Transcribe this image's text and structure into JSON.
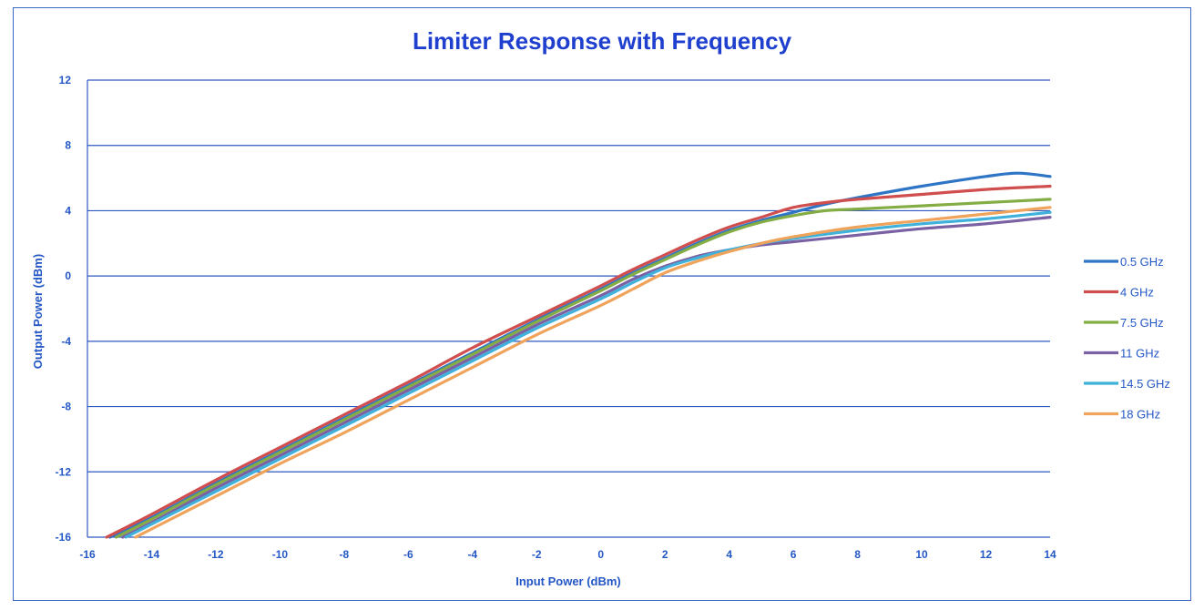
{
  "chart_data": {
    "type": "line",
    "title": "Limiter Response with Frequency",
    "xlabel": "Input Power (dBm)",
    "ylabel": "Output Power (dBm)",
    "xlim": [
      -16,
      14
    ],
    "ylim": [
      -16,
      12
    ],
    "xticks": [
      "-16",
      "-14",
      "-12",
      "-10",
      "-8",
      "-6",
      "-4",
      "-2",
      "0",
      "2",
      "4",
      "6",
      "8",
      "10",
      "12",
      "14"
    ],
    "yticks": [
      "-16",
      "-12",
      "-8",
      "-4",
      "0",
      "4",
      "8",
      "12"
    ],
    "grid": "horizontal",
    "legend_position": "right",
    "series": [
      {
        "name": "0.5 GHz",
        "color": "#2e75c6",
        "x": [
          -15.3,
          -14,
          -12,
          -10,
          -8,
          -6,
          -4,
          -2,
          0,
          1,
          2,
          3,
          4,
          5,
          6,
          7,
          8,
          10,
          12,
          13,
          14
        ],
        "y": [
          -16,
          -14.8,
          -12.7,
          -10.7,
          -8.7,
          -6.7,
          -4.7,
          -2.7,
          -0.8,
          0.2,
          1.1,
          2.0,
          2.8,
          3.4,
          3.9,
          4.4,
          4.8,
          5.5,
          6.1,
          6.3,
          6.1
        ]
      },
      {
        "name": "4 GHz",
        "color": "#d04e4e",
        "x": [
          -15.4,
          -14,
          -12,
          -10,
          -8,
          -6,
          -4,
          -2,
          0,
          1,
          2,
          3,
          4,
          5,
          6,
          7,
          8,
          10,
          12,
          14
        ],
        "y": [
          -16,
          -14.6,
          -12.5,
          -10.5,
          -8.5,
          -6.5,
          -4.4,
          -2.5,
          -0.6,
          0.4,
          1.3,
          2.2,
          3.0,
          3.6,
          4.2,
          4.5,
          4.7,
          5.0,
          5.3,
          5.5
        ]
      },
      {
        "name": "7.5 GHz",
        "color": "#85ad45",
        "x": [
          -15.1,
          -14,
          -12,
          -10,
          -8,
          -6,
          -4,
          -2,
          0,
          1,
          2,
          3,
          4,
          5,
          6,
          7,
          8,
          10,
          12,
          14
        ],
        "y": [
          -16,
          -14.9,
          -12.8,
          -10.8,
          -8.8,
          -6.8,
          -4.8,
          -2.8,
          -0.9,
          0.1,
          1.0,
          1.9,
          2.7,
          3.3,
          3.7,
          4.0,
          4.1,
          4.3,
          4.5,
          4.7
        ]
      },
      {
        "name": "11 GHz",
        "color": "#7a61a3",
        "x": [
          -14.9,
          -14,
          -12,
          -10,
          -8,
          -6,
          -4,
          -2,
          0,
          1,
          2,
          3,
          4,
          5,
          6,
          8,
          10,
          12,
          14
        ],
        "y": [
          -16,
          -15.1,
          -13.0,
          -11.0,
          -9.0,
          -7.0,
          -5.0,
          -3.0,
          -1.2,
          -0.2,
          0.6,
          1.2,
          1.6,
          1.9,
          2.1,
          2.5,
          2.9,
          3.2,
          3.6
        ]
      },
      {
        "name": "14.5 GHz",
        "color": "#3fb1da",
        "x": [
          -14.8,
          -14,
          -12,
          -10,
          -8,
          -6,
          -4,
          -2,
          0,
          1,
          2,
          3,
          4,
          5,
          6,
          8,
          10,
          12,
          14
        ],
        "y": [
          -16,
          -15.2,
          -13.2,
          -11.2,
          -9.2,
          -7.2,
          -5.2,
          -3.2,
          -1.4,
          -0.4,
          0.5,
          1.1,
          1.6,
          2.0,
          2.3,
          2.8,
          3.2,
          3.5,
          3.9
        ]
      },
      {
        "name": "18 GHz",
        "color": "#f0a35a",
        "x": [
          -14.5,
          -14,
          -12,
          -10,
          -8,
          -6,
          -4,
          -2,
          0,
          1,
          2,
          3,
          4,
          5,
          6,
          8,
          10,
          12,
          14
        ],
        "y": [
          -16,
          -15.5,
          -13.5,
          -11.5,
          -9.6,
          -7.6,
          -5.6,
          -3.6,
          -1.8,
          -0.8,
          0.2,
          0.9,
          1.5,
          2.0,
          2.4,
          3.0,
          3.4,
          3.8,
          4.2
        ]
      }
    ]
  }
}
